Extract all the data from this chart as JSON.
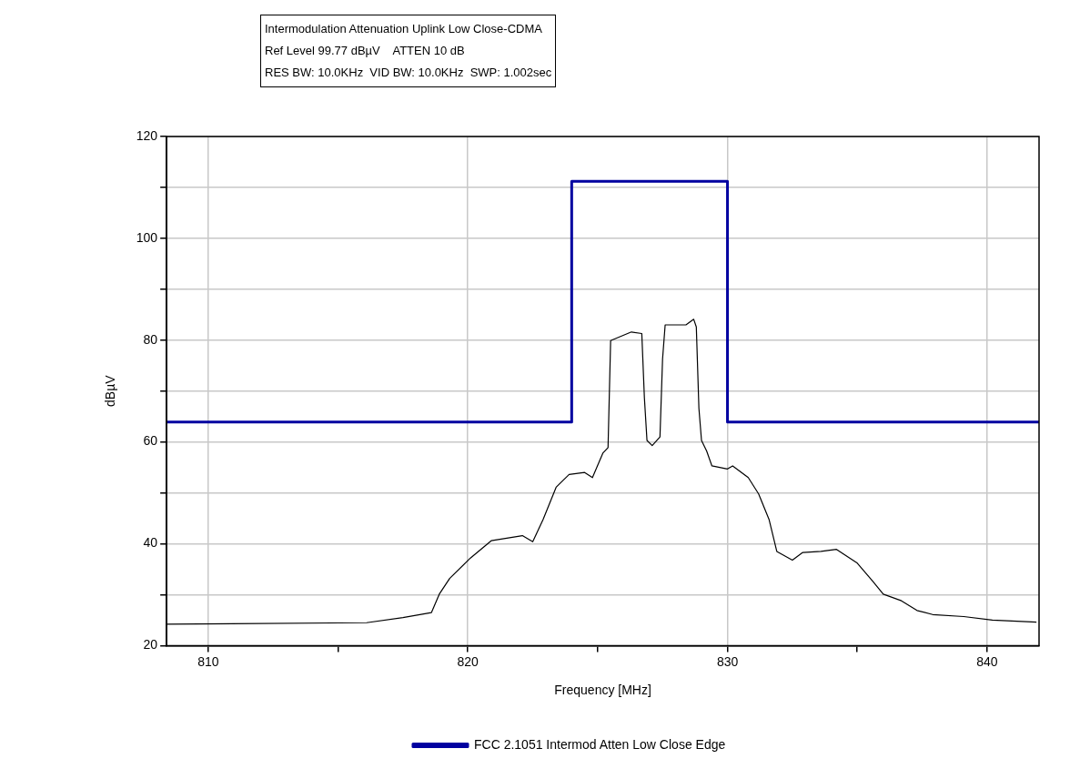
{
  "chart_data": {
    "type": "line",
    "title": "Intermodulation Attenuation Uplink Low Close-CDMA",
    "annotations": [
      "Ref Level 99.77 dBµV    ATTEN 10 dB",
      "RES BW: 10.0KHz  VID BW: 10.0KHz  SWP: 1.002sec"
    ],
    "xlabel": "Frequency [MHz]",
    "ylabel": "dBµV",
    "xlim": [
      808.4,
      842
    ],
    "ylim": [
      20,
      120
    ],
    "xticks": [
      810,
      {
        "value": 815,
        "label": null
      },
      820,
      {
        "value": 825,
        "label": null
      },
      830,
      {
        "value": 835,
        "label": null
      },
      840
    ],
    "yticks": [
      20,
      {
        "value": 30,
        "label": null
      },
      40,
      {
        "value": 50,
        "label": null
      },
      60,
      {
        "value": 70,
        "label": null
      },
      80,
      {
        "value": 90,
        "label": null
      },
      100,
      {
        "value": 110,
        "label": null
      },
      120
    ],
    "grid": true,
    "legend": "bottom",
    "marker": "none",
    "line_style": "solid",
    "series": [
      {
        "name": "FCC 2.1051 Intermod Atten Low Close Edge",
        "type": "step",
        "color": "#0000a0",
        "x": [
          808.4,
          824.0,
          830.0,
          842.0
        ],
        "values": [
          63.9,
          111.2,
          63.9,
          63.9
        ]
      },
      {
        "type": "line",
        "color": "#000000",
        "x": [
          808.4,
          816.1,
          817.5,
          818.6,
          818.9,
          819.3,
          820.1,
          820.9,
          822.1,
          822.5,
          822.9,
          823.4,
          823.9,
          824.5,
          824.8,
          825.2,
          825.4,
          825.5,
          826.3,
          826.7,
          826.8,
          826.9,
          827.1,
          827.4,
          827.5,
          827.6,
          828.4,
          828.7,
          828.8,
          828.9,
          829.0,
          829.2,
          829.4,
          830.0,
          830.2,
          830.8,
          831.2,
          831.6,
          831.9,
          832.5,
          832.9,
          833.6,
          834.2,
          835.0,
          835.6,
          836.0,
          836.7,
          837.3,
          837.9,
          839.1,
          840.2,
          841.9
        ],
        "values": [
          24.2,
          24.5,
          25.5,
          26.5,
          30.1,
          33.2,
          37.2,
          40.6,
          41.6,
          40.4,
          44.8,
          51.1,
          53.6,
          54.0,
          53.0,
          57.8,
          58.9,
          79.9,
          81.6,
          81.3,
          68.7,
          60.3,
          59.3,
          61.0,
          76.3,
          83.0,
          83.0,
          84.1,
          82.6,
          66.6,
          60.3,
          58.2,
          55.3,
          54.7,
          55.3,
          53.0,
          49.8,
          44.8,
          38.5,
          36.8,
          38.3,
          38.5,
          38.9,
          36.2,
          32.6,
          30.1,
          28.8,
          26.9,
          26.1,
          25.7,
          25.0,
          24.6
        ]
      }
    ]
  }
}
